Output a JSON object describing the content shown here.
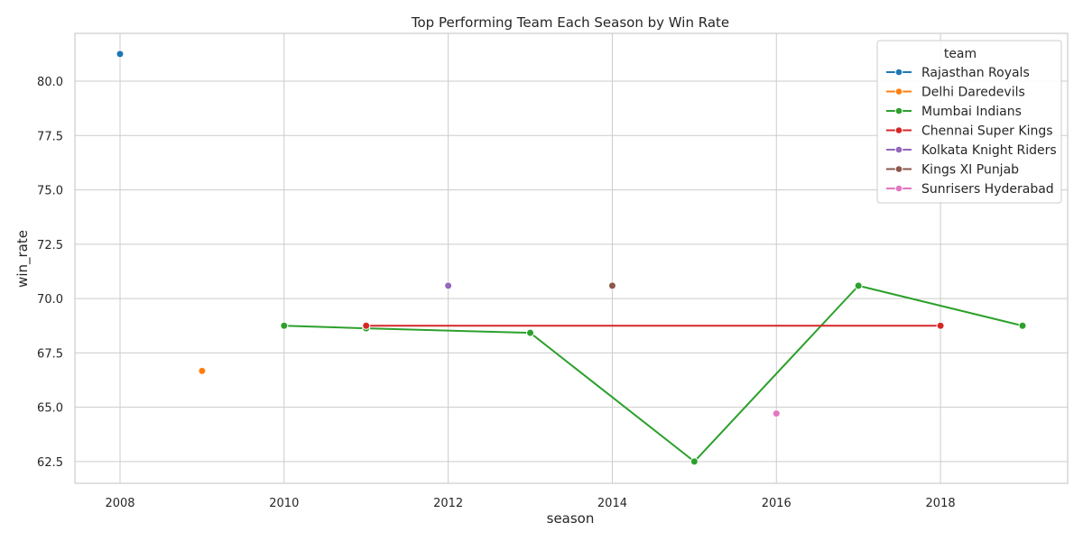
{
  "chart_data": {
    "type": "line",
    "title": "Top Performing Team Each Season by Win Rate",
    "xlabel": "season",
    "ylabel": "win_rate",
    "xlim": [
      2007.45,
      2019.55
    ],
    "ylim": [
      61.5,
      82.2
    ],
    "x_ticks": [
      "2008",
      "2010",
      "2012",
      "2014",
      "2016",
      "2018"
    ],
    "y_ticks": [
      "62.5",
      "65.0",
      "67.5",
      "70.0",
      "72.5",
      "75.0",
      "77.5",
      "80.0"
    ],
    "grid": true,
    "legend": {
      "title": "team",
      "placement": "top-right"
    },
    "series": [
      {
        "name": "Rajasthan Royals",
        "color": "#1f77b4",
        "points": [
          {
            "x": 2008,
            "y": 81.25
          }
        ]
      },
      {
        "name": "Delhi Daredevils",
        "color": "#ff7f0e",
        "points": [
          {
            "x": 2009,
            "y": 66.67
          }
        ]
      },
      {
        "name": "Mumbai Indians",
        "color": "#2ca02c",
        "points": [
          {
            "x": 2010,
            "y": 68.75
          },
          {
            "x": 2011,
            "y": 68.63
          },
          {
            "x": 2013,
            "y": 68.42
          },
          {
            "x": 2015,
            "y": 62.5
          },
          {
            "x": 2017,
            "y": 70.59
          },
          {
            "x": 2019,
            "y": 68.75
          }
        ]
      },
      {
        "name": "Chennai Super Kings",
        "color": "#d62728",
        "points": [
          {
            "x": 2011,
            "y": 68.75
          },
          {
            "x": 2018,
            "y": 68.75
          }
        ]
      },
      {
        "name": "Kolkata Knight Riders",
        "color": "#9467bd",
        "points": [
          {
            "x": 2012,
            "y": 70.59
          }
        ]
      },
      {
        "name": "Kings XI Punjab",
        "color": "#8c564b",
        "points": [
          {
            "x": 2014,
            "y": 70.59
          }
        ]
      },
      {
        "name": "Sunrisers Hyderabad",
        "color": "#e377c2",
        "points": [
          {
            "x": 2016,
            "y": 64.71
          }
        ]
      }
    ]
  }
}
